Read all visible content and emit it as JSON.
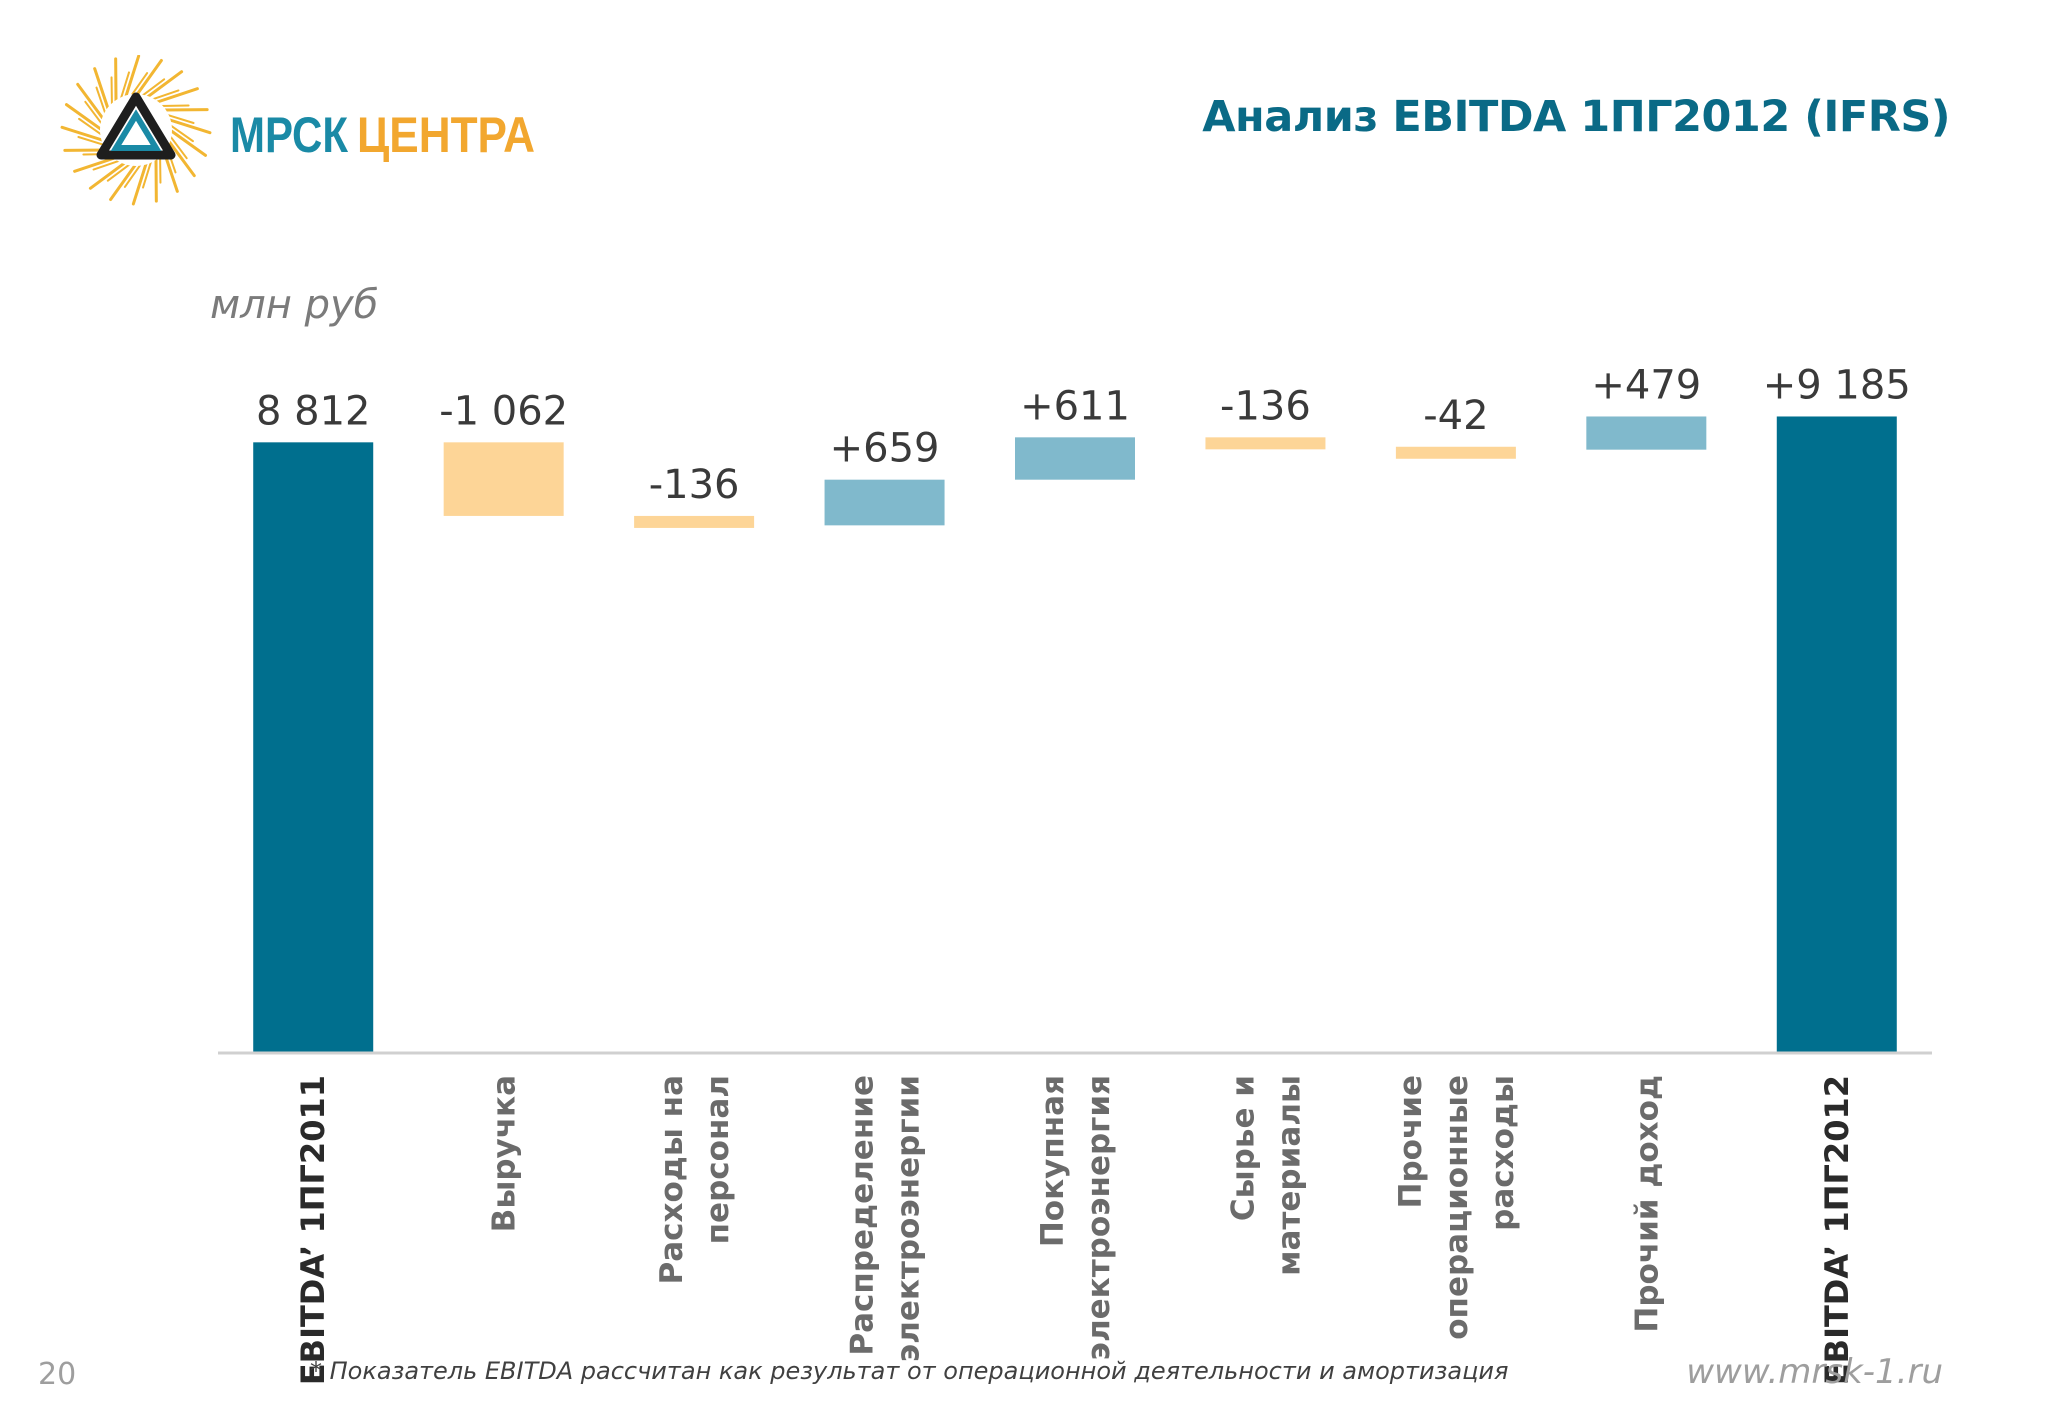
{
  "header": {
    "title": "Анализ EBITDA 1ПГ2012 (IFRS)",
    "logo_text_left": "МРСК",
    "logo_text_right": "ЦЕНТРА"
  },
  "unit_label": "млн руб",
  "colors": {
    "total": "#006f8e",
    "increase": "#80b9cc",
    "decrease": "#fdd597",
    "title": "#0a6a86",
    "logo_sun": "#f2b632",
    "logo_text_left": "#1a8aa6",
    "logo_text_right": "#f2a72f"
  },
  "chart_data": {
    "type": "waterfall",
    "title": "Анализ EBITDA 1ПГ2012 (IFRS)",
    "ylabel": "млн руб",
    "ylim": [
      0,
      9700
    ],
    "categories": [
      "EBITDA’ 1ПГ2011",
      "Выручка",
      "Расходы на персонал",
      "Распределение электроэнергии",
      "Покупная электроэнергия",
      "Сырье и материалы",
      "Прочие операционные расходы",
      "Прочий доход",
      "EBITDA’ 1ПГ2012"
    ],
    "category_lines": [
      [
        "EBITDA’ 1ПГ2011"
      ],
      [
        "Выручка"
      ],
      [
        "Расходы на",
        "персонал"
      ],
      [
        "Распределение",
        "электроэнергии"
      ],
      [
        "Покупная",
        "электроэнергия"
      ],
      [
        "Сырье и",
        "материалы"
      ],
      [
        "Прочие",
        "операционные",
        "расходы"
      ],
      [
        "Прочий доход"
      ],
      [
        "EBITDA’ 1ПГ2012"
      ]
    ],
    "category_bold": [
      true,
      false,
      false,
      false,
      false,
      false,
      false,
      false,
      true
    ],
    "values": [
      8812,
      -1062,
      -136,
      659,
      611,
      -136,
      -42,
      479,
      9185
    ],
    "kinds": [
      "total",
      "decrease",
      "decrease",
      "increase",
      "increase",
      "decrease",
      "decrease",
      "increase",
      "total"
    ],
    "data_labels": [
      "8 812",
      "-1 062",
      "-136",
      "+659",
      "+611",
      "-136",
      "-42",
      "+479",
      "+9 185"
    ]
  },
  "footer": {
    "page_number": "20",
    "footnote": "* Показатель EBITDA рассчитан как результат от операционной деятельности и амортизация",
    "website": "www.mrsk-1.ru"
  }
}
